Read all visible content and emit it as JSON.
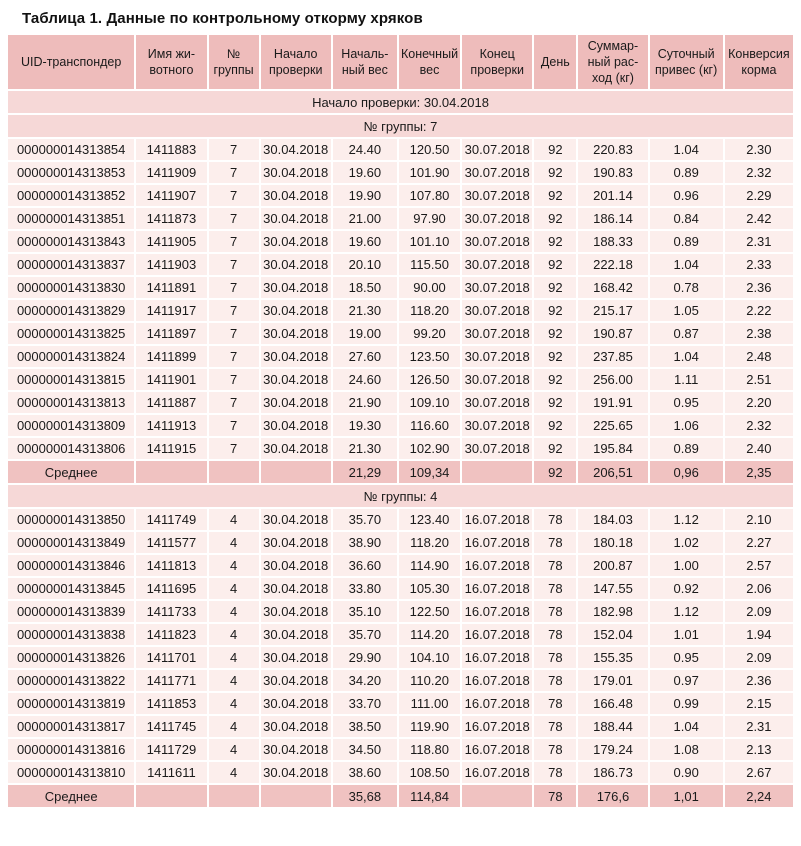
{
  "title": "Таблица 1. Данные по контрольному откорму хряков",
  "colors": {
    "header_bg": "#eebcbb",
    "band_bg": "#f6d8d7",
    "row_bg": "#fceeec",
    "avg_bg": "#f0c2c1",
    "text": "#1a1a1a",
    "page_bg": "#ffffff"
  },
  "table": {
    "column_keys": [
      "uid",
      "animal-name",
      "group-number",
      "check-start",
      "start-weight",
      "end-weight",
      "check-end",
      "day",
      "total-feed",
      "daily-gain",
      "feed-conversion"
    ],
    "headers": [
      "UID-транспондер",
      "Имя жи-\nвотного",
      "№\nгруппы",
      "Начало\nпроверки",
      "Началь-\nный вес",
      "Конечный\nвес",
      "Конец\nпроверки",
      "День",
      "Суммар-\nный рас-\nход (кг)",
      "Суточный\nпривес (кг)",
      "Конверсия\nкорма"
    ],
    "sections": [
      {
        "type": "band",
        "label": "Начало проверки: 30.04.2018"
      },
      {
        "type": "band",
        "label": "№ группы: 7"
      },
      {
        "type": "rows",
        "rows": [
          [
            "000000014313854",
            "1411883",
            "7",
            "30.04.2018",
            "24.40",
            "120.50",
            "30.07.2018",
            "92",
            "220.83",
            "1.04",
            "2.30"
          ],
          [
            "000000014313853",
            "1411909",
            "7",
            "30.04.2018",
            "19.60",
            "101.90",
            "30.07.2018",
            "92",
            "190.83",
            "0.89",
            "2.32"
          ],
          [
            "000000014313852",
            "1411907",
            "7",
            "30.04.2018",
            "19.90",
            "107.80",
            "30.07.2018",
            "92",
            "201.14",
            "0.96",
            "2.29"
          ],
          [
            "000000014313851",
            "1411873",
            "7",
            "30.04.2018",
            "21.00",
            "97.90",
            "30.07.2018",
            "92",
            "186.14",
            "0.84",
            "2.42"
          ],
          [
            "000000014313843",
            "1411905",
            "7",
            "30.04.2018",
            "19.60",
            "101.10",
            "30.07.2018",
            "92",
            "188.33",
            "0.89",
            "2.31"
          ],
          [
            "000000014313837",
            "1411903",
            "7",
            "30.04.2018",
            "20.10",
            "115.50",
            "30.07.2018",
            "92",
            "222.18",
            "1.04",
            "2.33"
          ],
          [
            "000000014313830",
            "1411891",
            "7",
            "30.04.2018",
            "18.50",
            "90.00",
            "30.07.2018",
            "92",
            "168.42",
            "0.78",
            "2.36"
          ],
          [
            "000000014313829",
            "1411917",
            "7",
            "30.04.2018",
            "21.30",
            "118.20",
            "30.07.2018",
            "92",
            "215.17",
            "1.05",
            "2.22"
          ],
          [
            "000000014313825",
            "1411897",
            "7",
            "30.04.2018",
            "19.00",
            "99.20",
            "30.07.2018",
            "92",
            "190.87",
            "0.87",
            "2.38"
          ],
          [
            "000000014313824",
            "1411899",
            "7",
            "30.04.2018",
            "27.60",
            "123.50",
            "30.07.2018",
            "92",
            "237.85",
            "1.04",
            "2.48"
          ],
          [
            "000000014313815",
            "1411901",
            "7",
            "30.04.2018",
            "24.60",
            "126.50",
            "30.07.2018",
            "92",
            "256.00",
            "1.11",
            "2.51"
          ],
          [
            "000000014313813",
            "1411887",
            "7",
            "30.04.2018",
            "21.90",
            "109.10",
            "30.07.2018",
            "92",
            "191.91",
            "0.95",
            "2.20"
          ],
          [
            "000000014313809",
            "1411913",
            "7",
            "30.04.2018",
            "19.30",
            "116.60",
            "30.07.2018",
            "92",
            "225.65",
            "1.06",
            "2.32"
          ],
          [
            "000000014313806",
            "1411915",
            "7",
            "30.04.2018",
            "21.30",
            "102.90",
            "30.07.2018",
            "92",
            "195.84",
            "0.89",
            "2.40"
          ]
        ]
      },
      {
        "type": "average",
        "cells": [
          "Среднее",
          "",
          "",
          "",
          "21,29",
          "109,34",
          "",
          "92",
          "206,51",
          "0,96",
          "2,35"
        ]
      },
      {
        "type": "band",
        "label": "№ группы: 4"
      },
      {
        "type": "rows",
        "rows": [
          [
            "000000014313850",
            "1411749",
            "4",
            "30.04.2018",
            "35.70",
            "123.40",
            "16.07.2018",
            "78",
            "184.03",
            "1.12",
            "2.10"
          ],
          [
            "000000014313849",
            "1411577",
            "4",
            "30.04.2018",
            "38.90",
            "118.20",
            "16.07.2018",
            "78",
            "180.18",
            "1.02",
            "2.27"
          ],
          [
            "000000014313846",
            "1411813",
            "4",
            "30.04.2018",
            "36.60",
            "114.90",
            "16.07.2018",
            "78",
            "200.87",
            "1.00",
            "2.57"
          ],
          [
            "000000014313845",
            "1411695",
            "4",
            "30.04.2018",
            "33.80",
            "105.30",
            "16.07.2018",
            "78",
            "147.55",
            "0.92",
            "2.06"
          ],
          [
            "000000014313839",
            "1411733",
            "4",
            "30.04.2018",
            "35.10",
            "122.50",
            "16.07.2018",
            "78",
            "182.98",
            "1.12",
            "2.09"
          ],
          [
            "000000014313838",
            "1411823",
            "4",
            "30.04.2018",
            "35.70",
            "114.20",
            "16.07.2018",
            "78",
            "152.04",
            "1.01",
            "1.94"
          ],
          [
            "000000014313826",
            "1411701",
            "4",
            "30.04.2018",
            "29.90",
            "104.10",
            "16.07.2018",
            "78",
            "155.35",
            "0.95",
            "2.09"
          ],
          [
            "000000014313822",
            "1411771",
            "4",
            "30.04.2018",
            "34.20",
            "110.20",
            "16.07.2018",
            "78",
            "179.01",
            "0.97",
            "2.36"
          ],
          [
            "000000014313819",
            "1411853",
            "4",
            "30.04.2018",
            "33.70",
            "111.00",
            "16.07.2018",
            "78",
            "166.48",
            "0.99",
            "2.15"
          ],
          [
            "000000014313817",
            "1411745",
            "4",
            "30.04.2018",
            "38.50",
            "119.90",
            "16.07.2018",
            "78",
            "188.44",
            "1.04",
            "2.31"
          ],
          [
            "000000014313816",
            "1411729",
            "4",
            "30.04.2018",
            "34.50",
            "118.80",
            "16.07.2018",
            "78",
            "179.24",
            "1.08",
            "2.13"
          ],
          [
            "000000014313810",
            "1411611",
            "4",
            "30.04.2018",
            "38.60",
            "108.50",
            "16.07.2018",
            "78",
            "186.73",
            "0.90",
            "2.67"
          ]
        ]
      },
      {
        "type": "average",
        "cells": [
          "Среднее",
          "",
          "",
          "",
          "35,68",
          "114,84",
          "",
          "78",
          "176,6",
          "1,01",
          "2,24"
        ]
      }
    ]
  }
}
